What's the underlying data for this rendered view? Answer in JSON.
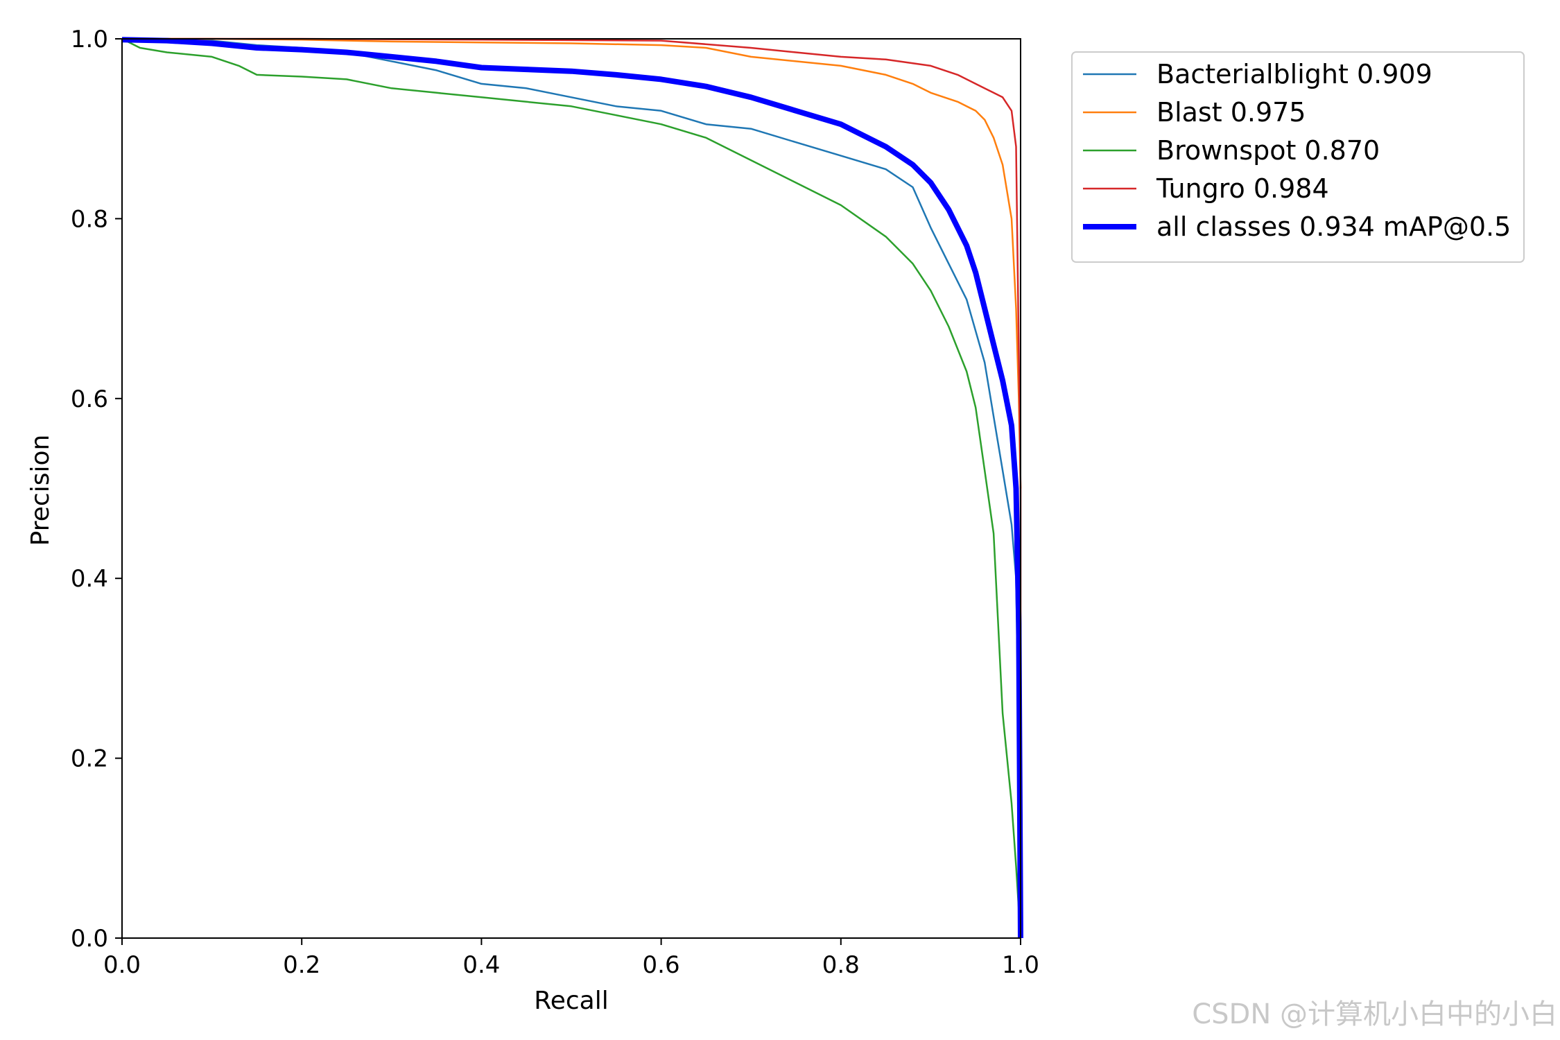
{
  "chart_data": {
    "type": "line",
    "title": "",
    "xlabel": "Recall",
    "ylabel": "Precision",
    "xlim": [
      0.0,
      1.0
    ],
    "ylim": [
      0.0,
      1.0
    ],
    "xticks": [
      "0.0",
      "0.2",
      "0.4",
      "0.6",
      "0.8",
      "1.0"
    ],
    "yticks": [
      "0.0",
      "0.2",
      "0.4",
      "0.6",
      "0.8",
      "1.0"
    ],
    "grid": false,
    "legend_position": "outside-top-right",
    "series": [
      {
        "name": "Bacterialblight 0.909",
        "color": "#1f77b4",
        "width": "thin",
        "points": [
          [
            0.0,
            1.0
          ],
          [
            0.05,
            0.999
          ],
          [
            0.1,
            0.998
          ],
          [
            0.15,
            0.993
          ],
          [
            0.2,
            0.99
          ],
          [
            0.25,
            0.985
          ],
          [
            0.3,
            0.975
          ],
          [
            0.35,
            0.965
          ],
          [
            0.4,
            0.95
          ],
          [
            0.45,
            0.945
          ],
          [
            0.5,
            0.935
          ],
          [
            0.55,
            0.925
          ],
          [
            0.6,
            0.92
          ],
          [
            0.65,
            0.905
          ],
          [
            0.7,
            0.9
          ],
          [
            0.75,
            0.885
          ],
          [
            0.8,
            0.87
          ],
          [
            0.85,
            0.855
          ],
          [
            0.88,
            0.835
          ],
          [
            0.9,
            0.79
          ],
          [
            0.92,
            0.75
          ],
          [
            0.94,
            0.71
          ],
          [
            0.96,
            0.64
          ],
          [
            0.97,
            0.58
          ],
          [
            0.98,
            0.52
          ],
          [
            0.99,
            0.46
          ],
          [
            0.995,
            0.4
          ],
          [
            0.998,
            0.2
          ],
          [
            1.0,
            0.0
          ]
        ]
      },
      {
        "name": "Blast 0.975",
        "color": "#ff7f0e",
        "width": "thin",
        "points": [
          [
            0.0,
            1.0
          ],
          [
            0.1,
            1.0
          ],
          [
            0.2,
            0.999
          ],
          [
            0.3,
            0.997
          ],
          [
            0.4,
            0.996
          ],
          [
            0.5,
            0.995
          ],
          [
            0.6,
            0.993
          ],
          [
            0.65,
            0.99
          ],
          [
            0.7,
            0.98
          ],
          [
            0.75,
            0.975
          ],
          [
            0.8,
            0.97
          ],
          [
            0.85,
            0.96
          ],
          [
            0.88,
            0.95
          ],
          [
            0.9,
            0.94
          ],
          [
            0.93,
            0.93
          ],
          [
            0.95,
            0.92
          ],
          [
            0.96,
            0.91
          ],
          [
            0.97,
            0.89
          ],
          [
            0.98,
            0.86
          ],
          [
            0.99,
            0.8
          ],
          [
            0.995,
            0.7
          ],
          [
            0.998,
            0.6
          ],
          [
            1.0,
            0.5
          ]
        ]
      },
      {
        "name": "Brownspot 0.870",
        "color": "#2ca02c",
        "width": "thin",
        "points": [
          [
            0.0,
            1.0
          ],
          [
            0.02,
            0.99
          ],
          [
            0.05,
            0.985
          ],
          [
            0.1,
            0.98
          ],
          [
            0.13,
            0.97
          ],
          [
            0.15,
            0.96
          ],
          [
            0.2,
            0.958
          ],
          [
            0.25,
            0.955
          ],
          [
            0.3,
            0.945
          ],
          [
            0.35,
            0.94
          ],
          [
            0.4,
            0.935
          ],
          [
            0.45,
            0.93
          ],
          [
            0.5,
            0.925
          ],
          [
            0.55,
            0.915
          ],
          [
            0.6,
            0.905
          ],
          [
            0.65,
            0.89
          ],
          [
            0.7,
            0.865
          ],
          [
            0.75,
            0.84
          ],
          [
            0.8,
            0.815
          ],
          [
            0.85,
            0.78
          ],
          [
            0.88,
            0.75
          ],
          [
            0.9,
            0.72
          ],
          [
            0.92,
            0.68
          ],
          [
            0.94,
            0.63
          ],
          [
            0.95,
            0.59
          ],
          [
            0.96,
            0.52
          ],
          [
            0.97,
            0.45
          ],
          [
            0.975,
            0.35
          ],
          [
            0.98,
            0.25
          ],
          [
            0.99,
            0.15
          ],
          [
            0.995,
            0.08
          ],
          [
            1.0,
            0.0
          ]
        ]
      },
      {
        "name": "Tungro 0.984",
        "color": "#d62728",
        "width": "thin",
        "points": [
          [
            0.0,
            1.0
          ],
          [
            0.2,
            1.0
          ],
          [
            0.4,
            0.999
          ],
          [
            0.6,
            0.998
          ],
          [
            0.7,
            0.99
          ],
          [
            0.75,
            0.985
          ],
          [
            0.8,
            0.98
          ],
          [
            0.85,
            0.977
          ],
          [
            0.9,
            0.97
          ],
          [
            0.93,
            0.96
          ],
          [
            0.95,
            0.95
          ],
          [
            0.97,
            0.94
          ],
          [
            0.98,
            0.935
          ],
          [
            0.99,
            0.92
          ],
          [
            0.995,
            0.88
          ],
          [
            1.0,
            0.5
          ],
          [
            1.0,
            0.0
          ]
        ]
      },
      {
        "name": "all classes 0.934 mAP@0.5",
        "color": "#0000ff",
        "width": "thick",
        "points": [
          [
            0.0,
            0.999
          ],
          [
            0.05,
            0.998
          ],
          [
            0.1,
            0.995
          ],
          [
            0.15,
            0.99
          ],
          [
            0.2,
            0.988
          ],
          [
            0.25,
            0.985
          ],
          [
            0.3,
            0.98
          ],
          [
            0.35,
            0.975
          ],
          [
            0.4,
            0.968
          ],
          [
            0.45,
            0.966
          ],
          [
            0.5,
            0.964
          ],
          [
            0.55,
            0.96
          ],
          [
            0.6,
            0.955
          ],
          [
            0.65,
            0.947
          ],
          [
            0.7,
            0.935
          ],
          [
            0.75,
            0.92
          ],
          [
            0.8,
            0.905
          ],
          [
            0.85,
            0.88
          ],
          [
            0.88,
            0.86
          ],
          [
            0.9,
            0.84
          ],
          [
            0.92,
            0.81
          ],
          [
            0.94,
            0.77
          ],
          [
            0.95,
            0.74
          ],
          [
            0.96,
            0.7
          ],
          [
            0.97,
            0.66
          ],
          [
            0.98,
            0.62
          ],
          [
            0.99,
            0.57
          ],
          [
            0.995,
            0.5
          ],
          [
            0.998,
            0.35
          ],
          [
            1.0,
            0.0
          ]
        ]
      }
    ]
  },
  "watermark": "CSDN @计算机小白中的小白"
}
